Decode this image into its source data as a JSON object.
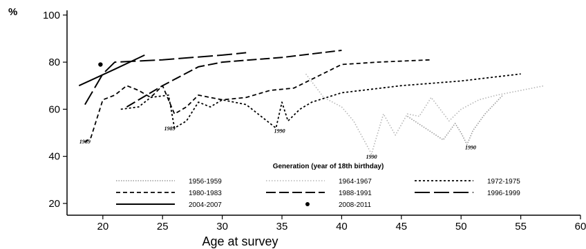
{
  "chart_data": {
    "type": "line",
    "title": "",
    "xlabel": "Age at survey",
    "ylabel": "%",
    "xlim": [
      17,
      60
    ],
    "ylim": [
      15,
      102
    ],
    "xticks": [
      20,
      25,
      30,
      35,
      40,
      45,
      50,
      55,
      60
    ],
    "yticks": [
      20,
      40,
      60,
      80,
      100
    ],
    "legend_title": "Generation (year of 18th birthday)",
    "legend_position": "bottom-center",
    "series": [
      {
        "name": "1956-1959",
        "style": "grey-dotted",
        "color": "#9a9a9a",
        "x": [
          45.5,
          47,
          48.5,
          49.5,
          50,
          50.5,
          51,
          52,
          53.5
        ],
        "y": [
          57,
          52,
          47,
          54,
          50,
          45,
          51,
          58,
          66
        ]
      },
      {
        "name": "1964-1967",
        "style": "light-dotted",
        "color": "#b5b5b5",
        "x": [
          37,
          38.5,
          40,
          41,
          42.5,
          43.5,
          44.5,
          45.5,
          46.5,
          47.5,
          49,
          50,
          51.5,
          53,
          55,
          57
        ],
        "y": [
          75,
          65,
          61,
          55,
          41,
          58,
          49,
          58,
          57,
          65,
          55,
          60,
          64,
          66,
          68,
          70
        ]
      },
      {
        "name": "1972-1975",
        "style": "short-dash",
        "color": "#000000",
        "x": [
          21.5,
          23,
          24,
          25.5,
          26,
          27,
          28,
          29,
          30,
          31,
          32,
          34.5,
          35,
          35.5,
          36.5,
          37.5,
          40,
          45,
          50,
          55
        ],
        "y": [
          60,
          61,
          65,
          66,
          52,
          55,
          63,
          61,
          64,
          63,
          62,
          52,
          63,
          55,
          60,
          63,
          67,
          70,
          72,
          75
        ]
      },
      {
        "name": "1980-1983",
        "style": "medium-dash",
        "color": "#000000",
        "x": [
          18.5,
          19,
          20,
          21,
          22,
          23,
          24,
          25,
          26,
          27,
          28,
          30,
          32,
          34,
          36,
          38,
          40,
          43,
          47.5
        ],
        "y": [
          46,
          48,
          64,
          66,
          70,
          68,
          65,
          70,
          58,
          61,
          66,
          64,
          65,
          68,
          69,
          74,
          79,
          80,
          81
        ]
      },
      {
        "name": "1988-1991",
        "style": "long-dash",
        "color": "#000000",
        "x": [
          22,
          25,
          28,
          30,
          35,
          40
        ],
        "y": [
          61,
          70,
          78,
          80,
          82,
          85
        ]
      },
      {
        "name": "1996-1999",
        "style": "longest-dash",
        "color": "#000000",
        "x": [
          18.5,
          20,
          21,
          25,
          30,
          32
        ],
        "y": [
          62,
          75,
          80,
          81,
          83,
          84
        ]
      },
      {
        "name": "2004-2007",
        "style": "solid",
        "color": "#000000",
        "x": [
          18,
          21,
          23.5
        ],
        "y": [
          70,
          77,
          83
        ]
      },
      {
        "name": "2008-2011",
        "style": "dot-marker",
        "color": "#000000",
        "x": [
          19.8
        ],
        "y": [
          79
        ]
      }
    ],
    "annotations": [
      {
        "text": "1989",
        "x": 18.5,
        "y": 45.5
      },
      {
        "text": "1989",
        "x": 25.6,
        "y": 51
      },
      {
        "text": "1990",
        "x": 34.8,
        "y": 50
      },
      {
        "text": "1990",
        "x": 42.5,
        "y": 39
      },
      {
        "text": "1990",
        "x": 50.8,
        "y": 43
      }
    ]
  }
}
